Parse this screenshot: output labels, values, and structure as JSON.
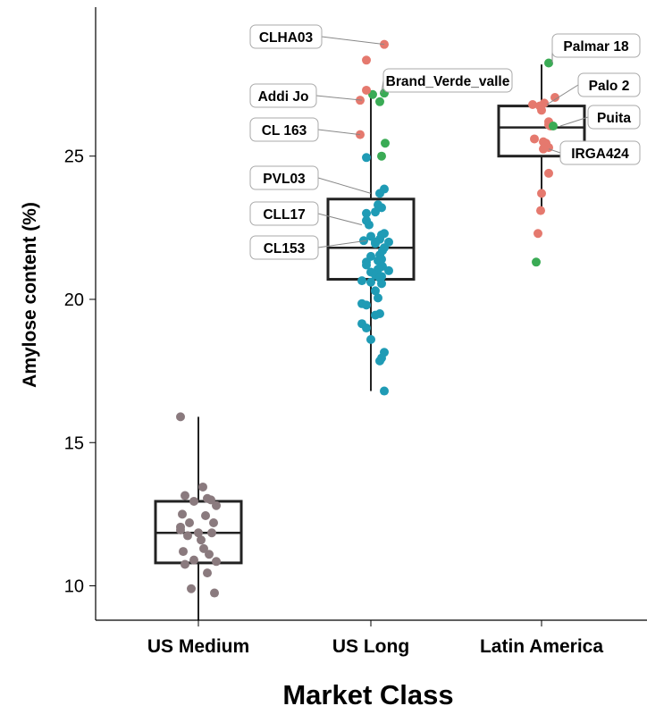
{
  "chart_data": {
    "type": "box",
    "xlabel": "Market Class",
    "ylabel": "Amylose content (%)",
    "ylim": [
      8.8,
      30.2
    ],
    "yticks": [
      10,
      15,
      20,
      25
    ],
    "grid": false,
    "categories": [
      "US Medium",
      "US Long",
      "Latin America"
    ],
    "colors": {
      "grey": "#8a7a7e",
      "blue": "#1f9bb5",
      "green": "#3aab55",
      "red": "#e5796e"
    },
    "boxes": [
      {
        "category": "US Medium",
        "min": 8.8,
        "q1": 10.8,
        "median": 11.85,
        "q3": 12.95,
        "max": 15.9
      },
      {
        "category": "US Long",
        "min": 16.8,
        "q1": 20.7,
        "median": 21.8,
        "q3": 23.5,
        "max": 27.1
      },
      {
        "category": "Latin America",
        "min": 23.1,
        "q1": 25.0,
        "median": 26.0,
        "q3": 26.75,
        "max": 28.2
      }
    ],
    "points": {
      "US Medium": {
        "color": "grey",
        "offsets": [
          -0.2,
          0.05,
          -0.15,
          0.1,
          -0.05,
          0.2,
          -0.18,
          0.08,
          -0.1,
          0.17,
          -0.2,
          0.0,
          0.15,
          -0.12,
          0.03,
          -0.17,
          0.12,
          -0.05,
          0.2,
          -0.15,
          0.1,
          -0.08,
          0.18,
          0.06,
          -0.2,
          0.14
        ],
        "values": [
          15.9,
          13.45,
          13.15,
          13.05,
          12.95,
          12.8,
          12.5,
          12.45,
          12.2,
          12.2,
          11.95,
          11.85,
          11.85,
          11.75,
          11.6,
          11.2,
          11.1,
          10.9,
          10.85,
          10.75,
          10.45,
          9.9,
          9.75,
          11.3,
          12.05,
          13.0
        ]
      },
      "US Long": {
        "color": "blue",
        "offsets": [
          -0.05,
          0.15,
          0.1,
          0.08,
          0.12,
          0.05,
          -0.05,
          -0.02,
          -0.05,
          0.15,
          0.12,
          0.0,
          0.1,
          -0.08,
          0.05,
          0.05,
          0.15,
          0.1,
          0.12,
          0.0,
          0.08,
          -0.05,
          -0.05,
          0.13,
          0.08,
          0.0,
          0.2,
          0.05,
          0.12,
          0.1,
          -0.1,
          0.0,
          0.12,
          0.05,
          0.08,
          -0.1,
          -0.05,
          0.1,
          0.05,
          -0.1,
          -0.05,
          0.15,
          0.1,
          0.12,
          0.0,
          0.13,
          0.2,
          0.15
        ],
        "values": [
          24.95,
          23.85,
          23.7,
          23.3,
          23.2,
          23.05,
          23.0,
          22.6,
          22.75,
          22.3,
          22.25,
          22.2,
          22.1,
          22.05,
          22.0,
          21.95,
          21.8,
          21.55,
          21.4,
          21.5,
          21.35,
          21.3,
          21.2,
          21.15,
          21.05,
          20.95,
          21.0,
          20.85,
          20.8,
          20.75,
          20.65,
          20.6,
          20.55,
          20.3,
          20.05,
          19.85,
          19.8,
          19.5,
          19.45,
          19.15,
          19.0,
          18.15,
          17.85,
          17.95,
          18.6,
          21.7,
          22.0,
          16.8
        ]
      },
      "US Long extra": {
        "green": {
          "offsets": [
            0.02,
            0.1,
            0.15,
            0.12,
            0.16
          ],
          "values": [
            27.15,
            26.9,
            27.2,
            25.0,
            25.45
          ]
        },
        "red": {
          "offsets": [
            0.15,
            -0.05,
            -0.05,
            -0.12
          ],
          "values": [
            28.9,
            28.35,
            27.3,
            26.95
          ]
        },
        "red_left": {
          "offsets": [
            -0.12
          ],
          "values": [
            25.75
          ]
        }
      },
      "Latin America": {
        "green": {
          "offsets": [
            0.08,
            0.13,
            -0.06
          ],
          "values": [
            28.25,
            26.05,
            21.3
          ]
        },
        "red": {
          "offsets": [
            0.15,
            0.03,
            -0.1,
            -0.02,
            0.0,
            0.08,
            0.08,
            0.1,
            -0.08,
            0.02,
            0.05,
            0.08,
            0.02,
            0.08,
            0.0,
            -0.04,
            -0.01
          ],
          "values": [
            27.05,
            26.85,
            26.8,
            26.75,
            26.6,
            26.2,
            26.1,
            26.05,
            25.6,
            25.5,
            25.45,
            25.3,
            25.25,
            24.4,
            23.7,
            22.3,
            23.1
          ]
        }
      }
    },
    "annotations": [
      {
        "label": "CLHA03",
        "category": "US Long",
        "y": 28.9
      },
      {
        "label": "Addi Jo",
        "category": "US Long",
        "y": 26.95
      },
      {
        "label": "Brand_Verde_valle",
        "category": "US Long",
        "y": 27.2
      },
      {
        "label": "CL 163",
        "category": "US Long",
        "y": 25.75
      },
      {
        "label": "PVL03",
        "category": "US Long",
        "y": 23.7
      },
      {
        "label": "CLL17",
        "category": "US Long",
        "y": 22.6
      },
      {
        "label": "CL153",
        "category": "US Long",
        "y": 22.05
      },
      {
        "label": "Palmar 18",
        "category": "Latin America",
        "y": 28.25
      },
      {
        "label": "Palo 2",
        "category": "Latin America",
        "y": 26.8
      },
      {
        "label": "Puita",
        "category": "Latin America",
        "y": 26.05
      },
      {
        "label": "IRGA424",
        "category": "Latin America",
        "y": 25.25
      }
    ]
  }
}
